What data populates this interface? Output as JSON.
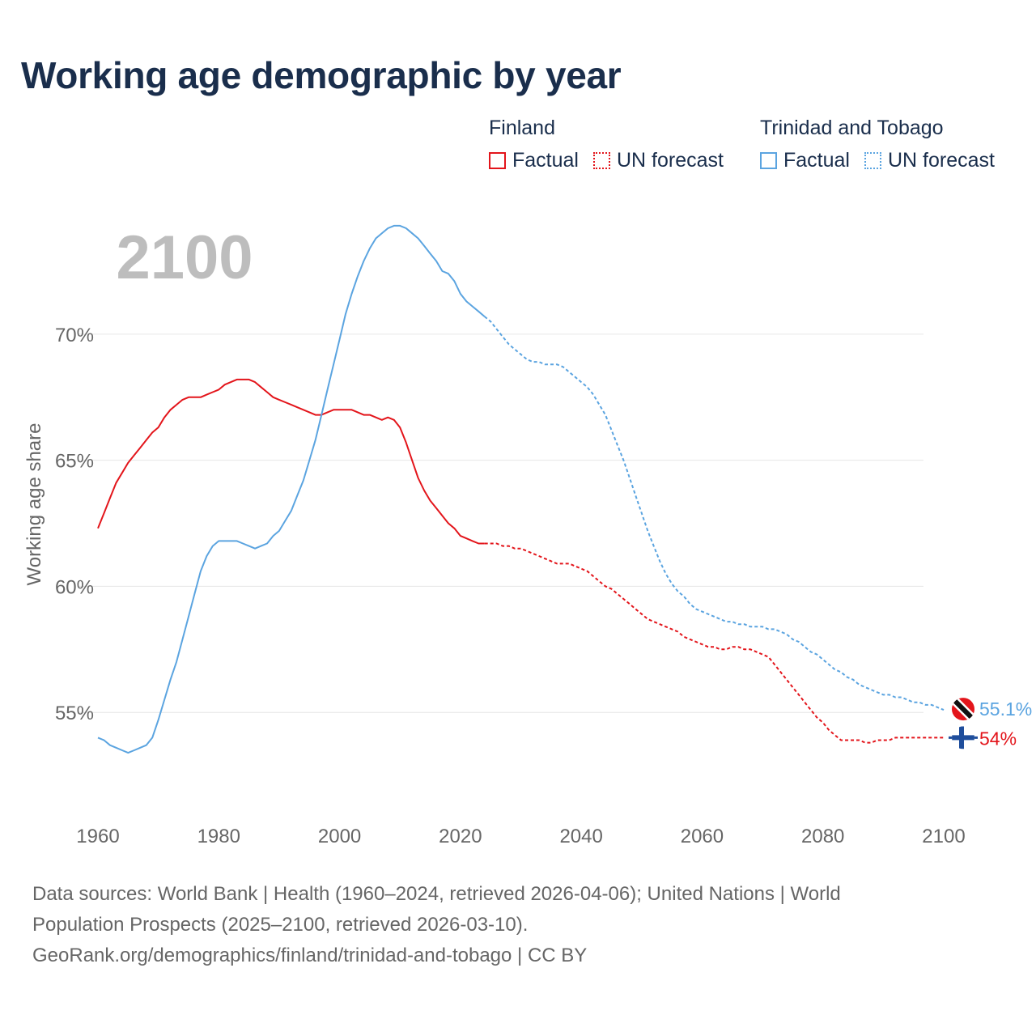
{
  "title": "Working age demographic by year",
  "year_watermark": "2100",
  "legend": {
    "groups": [
      {
        "name": "Finland",
        "factual_label": "Factual",
        "forecast_label": "UN forecast",
        "color": "#e3151b"
      },
      {
        "name": "Trinidad and Tobago",
        "factual_label": "Factual",
        "forecast_label": "UN forecast",
        "color": "#5ba4e0"
      }
    ]
  },
  "source": {
    "line1": "Data sources: World Bank | Health (1960–2024, retrieved 2026-04-06); United Nations | World",
    "line2": "Population Prospects (2025–2100, retrieved 2026-03-10).",
    "line3": "GeoRank.org/demographics/finland/trinidad-and-tobago | CC BY"
  },
  "chart_data": {
    "type": "line",
    "title": "Working age demographic by year",
    "xlabel": "",
    "ylabel": "Working age share",
    "xlim": [
      1960,
      2100
    ],
    "ylim": [
      52.6,
      74.2
    ],
    "x_ticks": [
      1960,
      1980,
      2000,
      2020,
      2040,
      2060,
      2080,
      2100
    ],
    "y_ticks": [
      55,
      60,
      65,
      70
    ],
    "y_tick_labels": [
      "55%",
      "60%",
      "65%",
      "70%"
    ],
    "grid": true,
    "factual_end_year": 2024,
    "series": [
      {
        "name": "Finland",
        "color": "#e3151b",
        "end_label": "54%",
        "flag": "finland",
        "points": [
          [
            1960,
            62.3
          ],
          [
            1961,
            62.9
          ],
          [
            1962,
            63.5
          ],
          [
            1963,
            64.1
          ],
          [
            1964,
            64.5
          ],
          [
            1965,
            64.9
          ],
          [
            1966,
            65.2
          ],
          [
            1967,
            65.5
          ],
          [
            1968,
            65.8
          ],
          [
            1969,
            66.1
          ],
          [
            1970,
            66.3
          ],
          [
            1971,
            66.7
          ],
          [
            1972,
            67.0
          ],
          [
            1973,
            67.2
          ],
          [
            1974,
            67.4
          ],
          [
            1975,
            67.5
          ],
          [
            1976,
            67.5
          ],
          [
            1977,
            67.5
          ],
          [
            1978,
            67.6
          ],
          [
            1979,
            67.7
          ],
          [
            1980,
            67.8
          ],
          [
            1981,
            68.0
          ],
          [
            1982,
            68.1
          ],
          [
            1983,
            68.2
          ],
          [
            1984,
            68.2
          ],
          [
            1985,
            68.2
          ],
          [
            1986,
            68.1
          ],
          [
            1987,
            67.9
          ],
          [
            1988,
            67.7
          ],
          [
            1989,
            67.5
          ],
          [
            1990,
            67.4
          ],
          [
            1991,
            67.3
          ],
          [
            1992,
            67.2
          ],
          [
            1993,
            67.1
          ],
          [
            1994,
            67.0
          ],
          [
            1995,
            66.9
          ],
          [
            1996,
            66.8
          ],
          [
            1997,
            66.8
          ],
          [
            1998,
            66.9
          ],
          [
            1999,
            67.0
          ],
          [
            2000,
            67.0
          ],
          [
            2001,
            67.0
          ],
          [
            2002,
            67.0
          ],
          [
            2003,
            66.9
          ],
          [
            2004,
            66.8
          ],
          [
            2005,
            66.8
          ],
          [
            2006,
            66.7
          ],
          [
            2007,
            66.6
          ],
          [
            2008,
            66.7
          ],
          [
            2009,
            66.6
          ],
          [
            2010,
            66.3
          ],
          [
            2011,
            65.7
          ],
          [
            2012,
            65.0
          ],
          [
            2013,
            64.3
          ],
          [
            2014,
            63.8
          ],
          [
            2015,
            63.4
          ],
          [
            2016,
            63.1
          ],
          [
            2017,
            62.8
          ],
          [
            2018,
            62.5
          ],
          [
            2019,
            62.3
          ],
          [
            2020,
            62.0
          ],
          [
            2021,
            61.9
          ],
          [
            2022,
            61.8
          ],
          [
            2023,
            61.7
          ],
          [
            2024,
            61.7
          ],
          [
            2025,
            61.7
          ],
          [
            2026,
            61.7
          ],
          [
            2027,
            61.6
          ],
          [
            2028,
            61.6
          ],
          [
            2029,
            61.5
          ],
          [
            2030,
            61.5
          ],
          [
            2031,
            61.4
          ],
          [
            2032,
            61.3
          ],
          [
            2033,
            61.2
          ],
          [
            2034,
            61.1
          ],
          [
            2035,
            61.0
          ],
          [
            2036,
            60.9
          ],
          [
            2037,
            60.9
          ],
          [
            2038,
            60.9
          ],
          [
            2039,
            60.8
          ],
          [
            2040,
            60.7
          ],
          [
            2041,
            60.6
          ],
          [
            2042,
            60.4
          ],
          [
            2043,
            60.2
          ],
          [
            2044,
            60.0
          ],
          [
            2045,
            59.9
          ],
          [
            2046,
            59.7
          ],
          [
            2047,
            59.5
          ],
          [
            2048,
            59.3
          ],
          [
            2049,
            59.1
          ],
          [
            2050,
            58.9
          ],
          [
            2051,
            58.7
          ],
          [
            2052,
            58.6
          ],
          [
            2053,
            58.5
          ],
          [
            2054,
            58.4
          ],
          [
            2055,
            58.3
          ],
          [
            2056,
            58.2
          ],
          [
            2057,
            58.0
          ],
          [
            2058,
            57.9
          ],
          [
            2059,
            57.8
          ],
          [
            2060,
            57.7
          ],
          [
            2061,
            57.6
          ],
          [
            2062,
            57.6
          ],
          [
            2063,
            57.5
          ],
          [
            2064,
            57.5
          ],
          [
            2065,
            57.6
          ],
          [
            2066,
            57.6
          ],
          [
            2067,
            57.5
          ],
          [
            2068,
            57.5
          ],
          [
            2069,
            57.4
          ],
          [
            2070,
            57.3
          ],
          [
            2071,
            57.2
          ],
          [
            2072,
            56.9
          ],
          [
            2073,
            56.6
          ],
          [
            2074,
            56.3
          ],
          [
            2075,
            56.0
          ],
          [
            2076,
            55.7
          ],
          [
            2077,
            55.4
          ],
          [
            2078,
            55.1
          ],
          [
            2079,
            54.8
          ],
          [
            2080,
            54.6
          ],
          [
            2081,
            54.3
          ],
          [
            2082,
            54.1
          ],
          [
            2083,
            53.9
          ],
          [
            2084,
            53.9
          ],
          [
            2085,
            53.9
          ],
          [
            2086,
            53.9
          ],
          [
            2087,
            53.8
          ],
          [
            2088,
            53.8
          ],
          [
            2089,
            53.9
          ],
          [
            2090,
            53.9
          ],
          [
            2091,
            53.9
          ],
          [
            2092,
            54.0
          ],
          [
            2093,
            54.0
          ],
          [
            2094,
            54.0
          ],
          [
            2095,
            54.0
          ],
          [
            2096,
            54.0
          ],
          [
            2097,
            54.0
          ],
          [
            2098,
            54.0
          ],
          [
            2099,
            54.0
          ],
          [
            2100,
            54.0
          ]
        ]
      },
      {
        "name": "Trinidad and Tobago",
        "color": "#5ba4e0",
        "end_label": "55.1%",
        "flag": "trinidad-and-tobago",
        "points": [
          [
            1960,
            54.0
          ],
          [
            1961,
            53.9
          ],
          [
            1962,
            53.7
          ],
          [
            1963,
            53.6
          ],
          [
            1964,
            53.5
          ],
          [
            1965,
            53.4
          ],
          [
            1966,
            53.5
          ],
          [
            1967,
            53.6
          ],
          [
            1968,
            53.7
          ],
          [
            1969,
            54.0
          ],
          [
            1970,
            54.7
          ],
          [
            1971,
            55.5
          ],
          [
            1972,
            56.3
          ],
          [
            1973,
            57.0
          ],
          [
            1974,
            57.9
          ],
          [
            1975,
            58.8
          ],
          [
            1976,
            59.7
          ],
          [
            1977,
            60.6
          ],
          [
            1978,
            61.2
          ],
          [
            1979,
            61.6
          ],
          [
            1980,
            61.8
          ],
          [
            1981,
            61.8
          ],
          [
            1982,
            61.8
          ],
          [
            1983,
            61.8
          ],
          [
            1984,
            61.7
          ],
          [
            1985,
            61.6
          ],
          [
            1986,
            61.5
          ],
          [
            1987,
            61.6
          ],
          [
            1988,
            61.7
          ],
          [
            1989,
            62.0
          ],
          [
            1990,
            62.2
          ],
          [
            1991,
            62.6
          ],
          [
            1992,
            63.0
          ],
          [
            1993,
            63.6
          ],
          [
            1994,
            64.2
          ],
          [
            1995,
            65.0
          ],
          [
            1996,
            65.8
          ],
          [
            1997,
            66.8
          ],
          [
            1998,
            67.8
          ],
          [
            1999,
            68.8
          ],
          [
            2000,
            69.8
          ],
          [
            2001,
            70.8
          ],
          [
            2002,
            71.6
          ],
          [
            2003,
            72.3
          ],
          [
            2004,
            72.9
          ],
          [
            2005,
            73.4
          ],
          [
            2006,
            73.8
          ],
          [
            2007,
            74.0
          ],
          [
            2008,
            74.2
          ],
          [
            2009,
            74.3
          ],
          [
            2010,
            74.3
          ],
          [
            2011,
            74.2
          ],
          [
            2012,
            74.0
          ],
          [
            2013,
            73.8
          ],
          [
            2014,
            73.5
          ],
          [
            2015,
            73.2
          ],
          [
            2016,
            72.9
          ],
          [
            2017,
            72.5
          ],
          [
            2018,
            72.4
          ],
          [
            2019,
            72.1
          ],
          [
            2020,
            71.6
          ],
          [
            2021,
            71.3
          ],
          [
            2022,
            71.1
          ],
          [
            2023,
            70.9
          ],
          [
            2024,
            70.7
          ],
          [
            2025,
            70.5
          ],
          [
            2026,
            70.2
          ],
          [
            2027,
            69.9
          ],
          [
            2028,
            69.6
          ],
          [
            2029,
            69.4
          ],
          [
            2030,
            69.2
          ],
          [
            2031,
            69.0
          ],
          [
            2032,
            68.9
          ],
          [
            2033,
            68.9
          ],
          [
            2034,
            68.8
          ],
          [
            2035,
            68.8
          ],
          [
            2036,
            68.8
          ],
          [
            2037,
            68.7
          ],
          [
            2038,
            68.5
          ],
          [
            2039,
            68.3
          ],
          [
            2040,
            68.1
          ],
          [
            2041,
            67.9
          ],
          [
            2042,
            67.6
          ],
          [
            2043,
            67.2
          ],
          [
            2044,
            66.8
          ],
          [
            2045,
            66.2
          ],
          [
            2046,
            65.6
          ],
          [
            2047,
            65.0
          ],
          [
            2048,
            64.3
          ],
          [
            2049,
            63.6
          ],
          [
            2050,
            62.9
          ],
          [
            2051,
            62.2
          ],
          [
            2052,
            61.6
          ],
          [
            2053,
            61.0
          ],
          [
            2054,
            60.5
          ],
          [
            2055,
            60.1
          ],
          [
            2056,
            59.8
          ],
          [
            2057,
            59.6
          ],
          [
            2058,
            59.3
          ],
          [
            2059,
            59.1
          ],
          [
            2060,
            59.0
          ],
          [
            2061,
            58.9
          ],
          [
            2062,
            58.8
          ],
          [
            2063,
            58.7
          ],
          [
            2064,
            58.6
          ],
          [
            2065,
            58.6
          ],
          [
            2066,
            58.5
          ],
          [
            2067,
            58.5
          ],
          [
            2068,
            58.4
          ],
          [
            2069,
            58.4
          ],
          [
            2070,
            58.4
          ],
          [
            2071,
            58.3
          ],
          [
            2072,
            58.3
          ],
          [
            2073,
            58.2
          ],
          [
            2074,
            58.1
          ],
          [
            2075,
            57.9
          ],
          [
            2076,
            57.8
          ],
          [
            2077,
            57.6
          ],
          [
            2078,
            57.4
          ],
          [
            2079,
            57.3
          ],
          [
            2080,
            57.1
          ],
          [
            2081,
            56.9
          ],
          [
            2082,
            56.7
          ],
          [
            2083,
            56.6
          ],
          [
            2084,
            56.4
          ],
          [
            2085,
            56.3
          ],
          [
            2086,
            56.1
          ],
          [
            2087,
            56.0
          ],
          [
            2088,
            55.9
          ],
          [
            2089,
            55.8
          ],
          [
            2090,
            55.7
          ],
          [
            2091,
            55.7
          ],
          [
            2092,
            55.6
          ],
          [
            2093,
            55.6
          ],
          [
            2094,
            55.5
          ],
          [
            2095,
            55.4
          ],
          [
            2096,
            55.4
          ],
          [
            2097,
            55.3
          ],
          [
            2098,
            55.3
          ],
          [
            2099,
            55.2
          ],
          [
            2100,
            55.1
          ]
        ]
      }
    ]
  }
}
